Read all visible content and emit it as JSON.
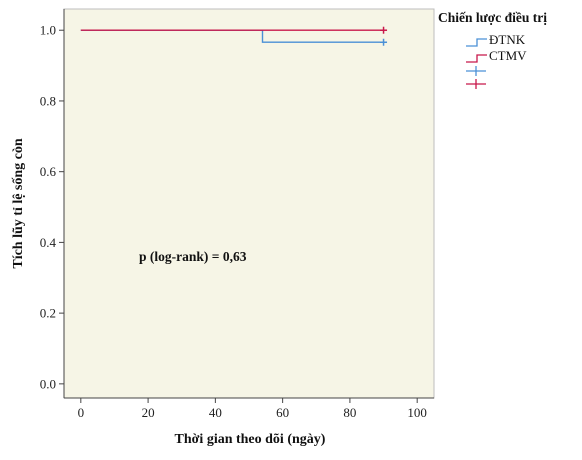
{
  "chart_data": {
    "type": "line",
    "subtype": "kaplan-meier",
    "xlabel": "Thời gian theo dõi (ngày)",
    "ylabel": "Tích lũy tỉ lệ sống còn",
    "xlim": [
      -5,
      105
    ],
    "ylim": [
      -0.04,
      1.06
    ],
    "xticks": [
      "0",
      "20",
      "40",
      "60",
      "80",
      "100"
    ],
    "yticks": [
      "0.0",
      "0.2",
      "0.4",
      "0.6",
      "0.8",
      "1.0"
    ],
    "grid": false,
    "plot_background": "#f6f5e6",
    "legend": {
      "title": "Chiến lược điều trị",
      "placement": "right",
      "entries": [
        "ĐTNK",
        "CTMV"
      ]
    },
    "annotation": "p (log-rank) = 0,63",
    "series": [
      {
        "name": "ĐTNK",
        "color": "#4a90d6",
        "steps": [
          [
            0,
            1.0
          ],
          [
            54,
            1.0
          ],
          [
            54,
            0.966
          ],
          [
            90,
            0.966
          ]
        ],
        "censored": [
          [
            90,
            0.966
          ]
        ]
      },
      {
        "name": "CTMV",
        "color": "#c8174a",
        "steps": [
          [
            0,
            1.0
          ],
          [
            90,
            1.0
          ]
        ],
        "censored": [
          [
            90,
            1.0
          ]
        ]
      }
    ]
  }
}
